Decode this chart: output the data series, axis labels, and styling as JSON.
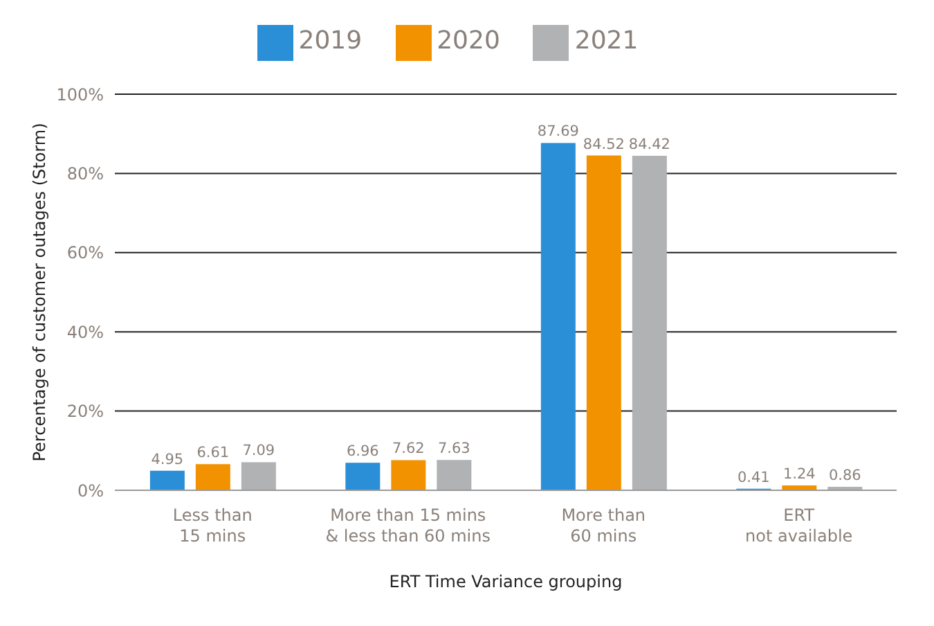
{
  "chart_data": {
    "type": "bar",
    "xlabel": "ERT Time Variance grouping",
    "ylabel": "Percentage of customer outages (Storm)",
    "categories": [
      "Less than\n15 mins",
      "More than 15 mins\n& less than 60 mins",
      "More than\n60 mins",
      "ERT\nnot available"
    ],
    "series": [
      {
        "name": "2019",
        "color": "#2a8fd6",
        "values": [
          4.95,
          6.96,
          87.69,
          0.41
        ]
      },
      {
        "name": "2020",
        "color": "#f39200",
        "values": [
          6.61,
          7.62,
          84.52,
          1.24
        ]
      },
      {
        "name": "2021",
        "color": "#b1b2b4",
        "values": [
          7.09,
          7.63,
          84.42,
          0.86
        ]
      }
    ],
    "ylim": [
      0,
      100
    ],
    "yticks": [
      {
        "value": 0,
        "label": "0%"
      },
      {
        "value": 20,
        "label": "20%"
      },
      {
        "value": 40,
        "label": "40%"
      },
      {
        "value": 60,
        "label": "60%"
      },
      {
        "value": 80,
        "label": "80%"
      },
      {
        "value": 100,
        "label": "100%"
      }
    ],
    "grid": "y",
    "legend": "top",
    "data_labels": true
  }
}
